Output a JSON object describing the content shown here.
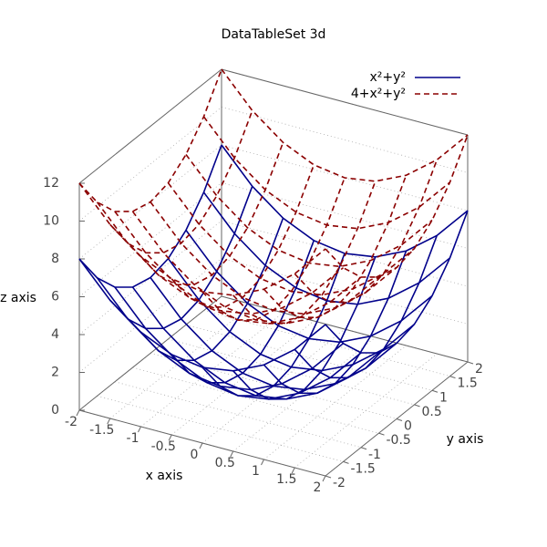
{
  "chart_data": {
    "type": "surface3d",
    "title": "DataTableSet 3d",
    "xlabel": "x axis",
    "ylabel": "y axis",
    "zlabel": "z axis",
    "x": [
      -2,
      -1.5,
      -1,
      -0.5,
      0,
      0.5,
      1,
      1.5,
      2
    ],
    "y": [
      -2,
      -1.5,
      -1,
      -0.5,
      0,
      0.5,
      1,
      1.5,
      2
    ],
    "xlim": [
      -2,
      2
    ],
    "ylim": [
      -2,
      2
    ],
    "zlim": [
      0,
      12
    ],
    "xticks": [
      -2,
      -1.5,
      -1,
      -0.5,
      0,
      0.5,
      1,
      1.5,
      2
    ],
    "yticks": [
      -2,
      -1.5,
      -1,
      -0.5,
      0,
      0.5,
      1,
      1.5,
      2
    ],
    "zticks": [
      0,
      2,
      4,
      6,
      8,
      10,
      12
    ],
    "grid": true,
    "legend": "top-right",
    "series": [
      {
        "name": "x²+y²",
        "color": "#00008b",
        "dashed": false,
        "values": [
          [
            8,
            6.25,
            5,
            4.25,
            4,
            4.25,
            5,
            6.25,
            8
          ],
          [
            6.25,
            4.5,
            3.25,
            2.5,
            2.25,
            2.5,
            3.25,
            4.5,
            6.25
          ],
          [
            5,
            3.25,
            2,
            1.25,
            1,
            1.25,
            2,
            3.25,
            5
          ],
          [
            4.25,
            2.5,
            1.25,
            0.5,
            0.25,
            0.5,
            1.25,
            2.5,
            4.25
          ],
          [
            4,
            2.25,
            1,
            0.25,
            0,
            0.25,
            1,
            2.25,
            4
          ],
          [
            4.25,
            2.5,
            1.25,
            0.5,
            0.25,
            0.5,
            1.25,
            2.5,
            4.25
          ],
          [
            5,
            3.25,
            2,
            1.25,
            1,
            1.25,
            2,
            3.25,
            5
          ],
          [
            6.25,
            4.5,
            3.25,
            2.5,
            2.25,
            2.5,
            3.25,
            4.5,
            6.25
          ],
          [
            8,
            6.25,
            5,
            4.25,
            4,
            4.25,
            5,
            6.25,
            8
          ]
        ]
      },
      {
        "name": "4+x²+y²",
        "color": "#8b0000",
        "dashed": true,
        "values": [
          [
            12,
            10.25,
            9,
            8.25,
            8,
            8.25,
            9,
            10.25,
            12
          ],
          [
            10.25,
            8.5,
            7.25,
            6.5,
            6.25,
            6.5,
            7.25,
            8.5,
            10.25
          ],
          [
            9,
            7.25,
            6,
            5.25,
            5,
            5.25,
            6,
            7.25,
            9
          ],
          [
            8.25,
            6.5,
            5.25,
            4.5,
            4.25,
            4.5,
            5.25,
            6.5,
            8.25
          ],
          [
            8,
            6.25,
            5,
            4.25,
            4,
            4.25,
            5,
            6.25,
            8
          ],
          [
            8.25,
            6.5,
            5.25,
            4.5,
            4.25,
            4.5,
            5.25,
            6.5,
            8.25
          ],
          [
            9,
            7.25,
            6,
            5.25,
            5,
            5.25,
            6,
            7.25,
            9
          ],
          [
            10.25,
            8.5,
            7.25,
            6.5,
            6.25,
            6.5,
            7.25,
            8.5,
            10.25
          ],
          [
            12,
            10.25,
            9,
            8.25,
            8,
            8.25,
            9,
            10.25,
            12
          ]
        ]
      }
    ]
  }
}
